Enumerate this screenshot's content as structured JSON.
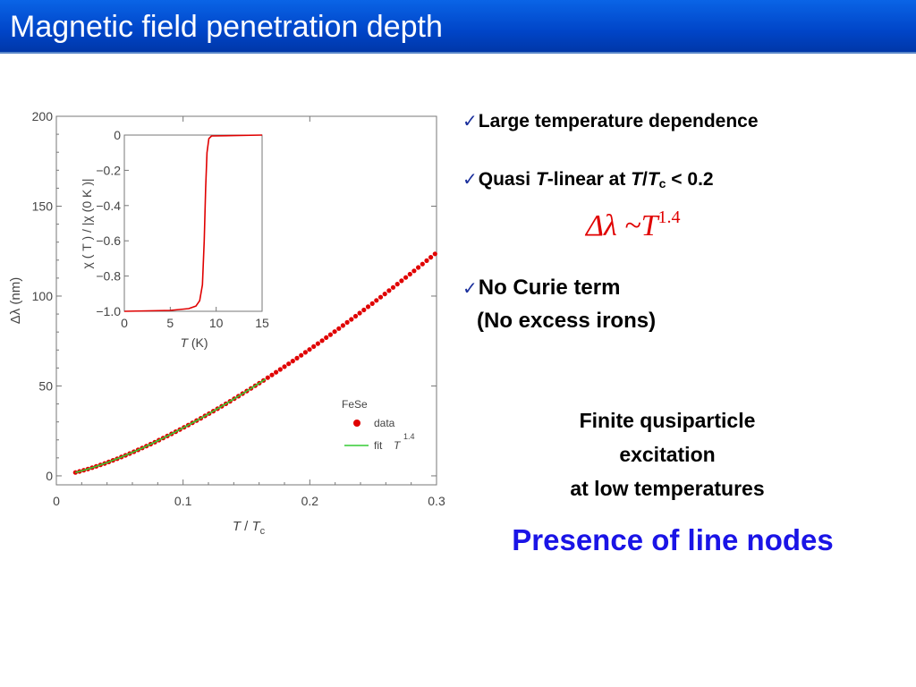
{
  "slide_title": "Magnetic field penetration depth",
  "bullets": {
    "check_glyph": "✓",
    "b1": "Large temperature dependence",
    "b2_pre": "Quasi ",
    "b2_t": "T",
    "b2_mid": "-linear at ",
    "b2_t2": "T",
    "b2_slash": "/",
    "b2_t3": "T",
    "b2_sub": "c",
    "b2_post": " < 0.2",
    "formula_main": "Δλ ~T",
    "formula_exp": "1.4",
    "b3_line1": "No Curie term",
    "b3_line2": "(No excess irons)"
  },
  "finite_text": {
    "line1": "Finite qusiparticle",
    "line2": "excitation",
    "line3": "at low temperatures"
  },
  "conclusion": "Presence of line nodes",
  "colors": {
    "title_bg": "#0045c8",
    "data": "#e00000",
    "fit": "#33cc33",
    "conclusion": "#1a14e6"
  },
  "chart_data": [
    {
      "type": "scatter",
      "xlabel": "T / Tc",
      "ylabel": "Δλ (nm)",
      "xlim": [
        0,
        0.3
      ],
      "ylim": [
        -5,
        200
      ],
      "xticks": [
        "0",
        "0.1",
        "0.2",
        "0.3"
      ],
      "yticks": [
        "0",
        "50",
        "100",
        "150",
        "200"
      ],
      "legend": {
        "title": "FeSe",
        "data_label": "data",
        "fit_label": "fit",
        "fit_T": "T",
        "fit_exp": "1.4",
        "placement": "lower-right"
      },
      "series": [
        {
          "name": "data",
          "kind": "points",
          "x_start": 0.015,
          "x_end": 0.3,
          "x_step": 0.0033,
          "law": "power",
          "coef": 670,
          "exponent": 1.4
        },
        {
          "name": "fit",
          "kind": "line",
          "x_start": 0.015,
          "x_end": 0.165,
          "law": "power",
          "coef": 670,
          "exponent": 1.4
        }
      ]
    },
    {
      "type": "line",
      "xlabel": "T (K)",
      "ylabel": "χ ( T ) / |χ (0 K )|",
      "xlim": [
        0,
        15
      ],
      "ylim": [
        -1.0,
        0.0
      ],
      "xticks": [
        "0",
        "5",
        "10",
        "15"
      ],
      "yticks": [
        "−1.0",
        "−0.8",
        "−0.6",
        "−0.4",
        "−0.2",
        "0"
      ],
      "series": [
        {
          "name": "",
          "points": [
            [
              0,
              -1.0
            ],
            [
              5,
              -0.995
            ],
            [
              7,
              -0.985
            ],
            [
              7.8,
              -0.97
            ],
            [
              8.2,
              -0.94
            ],
            [
              8.5,
              -0.85
            ],
            [
              8.7,
              -0.6
            ],
            [
              8.85,
              -0.3
            ],
            [
              9.0,
              -0.1
            ],
            [
              9.2,
              -0.02
            ],
            [
              9.5,
              -0.005
            ],
            [
              15,
              0.0
            ]
          ]
        }
      ]
    }
  ]
}
